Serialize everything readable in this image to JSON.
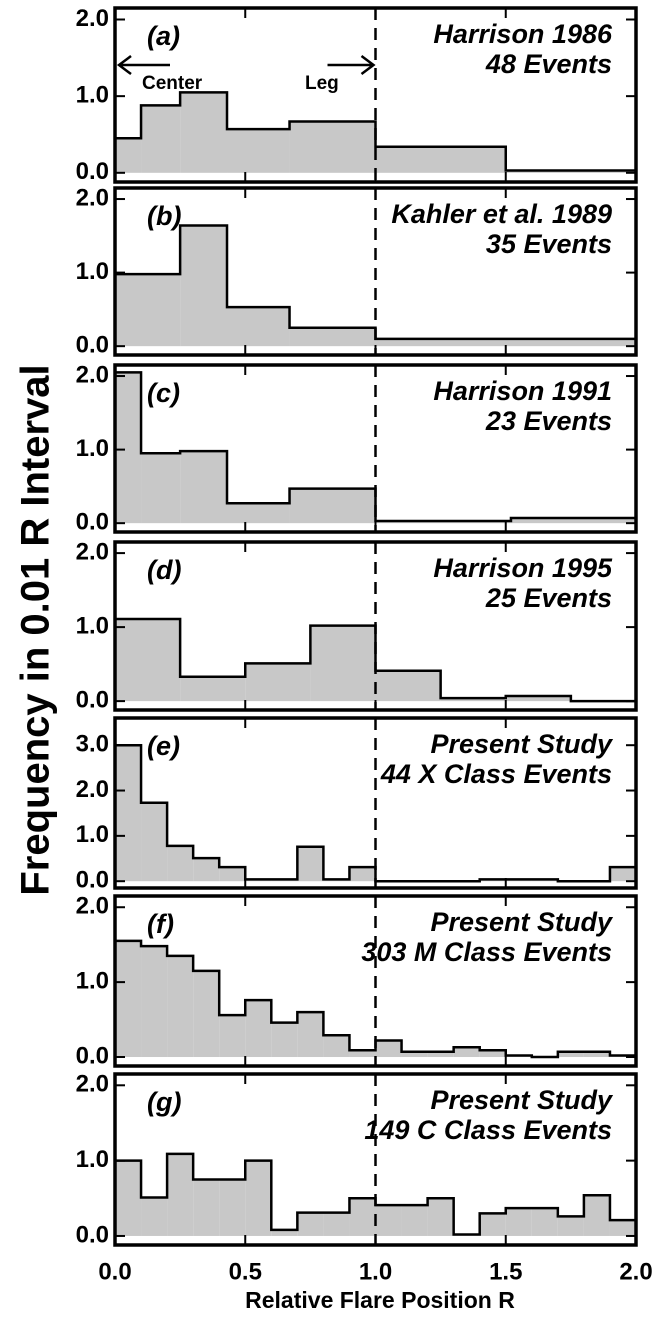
{
  "ylabel": "Frequency in 0.01 R Interval",
  "xlabel": "Relative Flare Position R",
  "chart_data": [
    {
      "type": "histogram",
      "label": "(a)",
      "title": "Harrison 1986",
      "subtitle": "48 Events",
      "annotations": [
        "Center",
        "Leg"
      ],
      "bins": [
        0,
        0.1,
        0.25,
        0.43,
        0.67,
        1.0,
        1.5,
        2.0
      ],
      "counts": [
        0.45,
        0.88,
        1.05,
        0.57,
        0.67,
        0.34,
        0.03
      ],
      "color": "#c8c8c8",
      "xlim": [
        0,
        2
      ],
      "xticks": [
        0,
        0.5,
        1,
        1.5,
        2
      ],
      "ylim": [
        -0.12,
        2.15
      ],
      "yticks": [
        {
          "value": 0,
          "label": "0.0"
        },
        {
          "value": 1,
          "label": "1.0"
        },
        {
          "value": 2,
          "label": "2.0"
        }
      ],
      "vline": 1
    },
    {
      "type": "histogram",
      "label": "(b)",
      "title": "Kahler et al. 1989",
      "subtitle": "35 Events",
      "bins": [
        0,
        0.25,
        0.43,
        0.67,
        1.0,
        2.0
      ],
      "counts": [
        0.98,
        1.64,
        0.53,
        0.25,
        0.1
      ],
      "color": "#c8c8c8",
      "xlim": [
        0,
        2
      ],
      "xticks": [
        0,
        0.5,
        1,
        1.5,
        2
      ],
      "ylim": [
        -0.12,
        2.15
      ],
      "yticks": [
        {
          "value": 0,
          "label": "0.0"
        },
        {
          "value": 1,
          "label": "1.0"
        },
        {
          "value": 2,
          "label": "2.0"
        }
      ],
      "vline": 1
    },
    {
      "type": "histogram",
      "label": "(c)",
      "title": "Harrison 1991",
      "subtitle": "23 Events",
      "bins": [
        0,
        0.1,
        0.25,
        0.43,
        0.67,
        1.0,
        1.52,
        2.0
      ],
      "counts": [
        2.05,
        0.95,
        0.98,
        0.27,
        0.47,
        0.03,
        0.07
      ],
      "color": "#c8c8c8",
      "xlim": [
        0,
        2
      ],
      "xticks": [
        0,
        0.5,
        1,
        1.5,
        2
      ],
      "ylim": [
        -0.12,
        2.15
      ],
      "yticks": [
        {
          "value": 0,
          "label": "0.0"
        },
        {
          "value": 1,
          "label": "1.0"
        },
        {
          "value": 2,
          "label": "2.0"
        }
      ],
      "vline": 1
    },
    {
      "type": "histogram",
      "label": "(d)",
      "title": "Harrison 1995",
      "subtitle": "25 Events",
      "bins": [
        0,
        0.25,
        0.5,
        0.75,
        1.0,
        1.25,
        1.5,
        1.75,
        2.0
      ],
      "counts": [
        1.11,
        0.33,
        0.51,
        1.02,
        0.41,
        0.04,
        0.07,
        0
      ],
      "color": "#c8c8c8",
      "xlim": [
        0,
        2
      ],
      "xticks": [
        0,
        0.5,
        1,
        1.5,
        2
      ],
      "ylim": [
        -0.12,
        2.15
      ],
      "yticks": [
        {
          "value": 0,
          "label": "0.0"
        },
        {
          "value": 1,
          "label": "1.0"
        },
        {
          "value": 2,
          "label": "2.0"
        }
      ],
      "vline": 1
    },
    {
      "type": "histogram",
      "label": "(e)",
      "title": "Present Study",
      "subtitle": "44 X Class Events",
      "bins": [
        0,
        0.1,
        0.2,
        0.3,
        0.4,
        0.5,
        0.6,
        0.7,
        0.8,
        0.9,
        1.0,
        1.1,
        1.2,
        1.3,
        1.4,
        1.5,
        1.6,
        1.7,
        1.8,
        1.9,
        2.0
      ],
      "counts": [
        3.0,
        1.73,
        0.78,
        0.51,
        0.31,
        0.04,
        0.04,
        0.76,
        0.04,
        0.31,
        0,
        0,
        0,
        0,
        0.04,
        0.04,
        0.04,
        0,
        0,
        0.31
      ],
      "color": "#c8c8c8",
      "xlim": [
        0,
        2
      ],
      "xticks": [
        0,
        0.5,
        1,
        1.5,
        2
      ],
      "ylim": [
        -0.15,
        3.6
      ],
      "yticks": [
        {
          "value": 0,
          "label": "0.0"
        },
        {
          "value": 1,
          "label": "1.0"
        },
        {
          "value": 2,
          "label": "2.0"
        },
        {
          "value": 3,
          "label": "3.0"
        }
      ],
      "vline": 1
    },
    {
      "type": "histogram",
      "label": "(f)",
      "title": "Present Study",
      "subtitle": "303 M Class Events",
      "bins": [
        0,
        0.1,
        0.2,
        0.3,
        0.4,
        0.5,
        0.6,
        0.7,
        0.8,
        0.9,
        1.0,
        1.1,
        1.2,
        1.3,
        1.4,
        1.5,
        1.6,
        1.7,
        1.8,
        1.9,
        2.0
      ],
      "counts": [
        1.55,
        1.48,
        1.35,
        1.15,
        0.56,
        0.76,
        0.46,
        0.6,
        0.29,
        0.09,
        0.22,
        0.07,
        0.07,
        0.13,
        0.09,
        0.02,
        0,
        0.07,
        0.07,
        0.02
      ],
      "color": "#c8c8c8",
      "xlim": [
        0,
        2
      ],
      "xticks": [
        0,
        0.5,
        1,
        1.5,
        2
      ],
      "ylim": [
        -0.12,
        2.15
      ],
      "yticks": [
        {
          "value": 0,
          "label": "0.0"
        },
        {
          "value": 1,
          "label": "1.0"
        },
        {
          "value": 2,
          "label": "2.0"
        }
      ],
      "vline": 1
    },
    {
      "type": "histogram",
      "label": "(g)",
      "title": "Present Study",
      "subtitle": "149 C Class Events",
      "bins": [
        0,
        0.1,
        0.2,
        0.3,
        0.4,
        0.5,
        0.6,
        0.7,
        0.8,
        0.9,
        1.0,
        1.1,
        1.2,
        1.3,
        1.4,
        1.5,
        1.6,
        1.7,
        1.8,
        1.9,
        2.0
      ],
      "counts": [
        1.0,
        0.51,
        1.09,
        0.75,
        0.75,
        1.0,
        0.08,
        0.31,
        0.31,
        0.5,
        0.41,
        0.41,
        0.5,
        0.02,
        0.3,
        0.37,
        0.37,
        0.26,
        0.54,
        0.21
      ],
      "color": "#c8c8c8",
      "xlim": [
        0,
        2
      ],
      "xticks": [
        {
          "value": 0,
          "label": "0.0"
        },
        {
          "value": 0.5,
          "label": "0.5"
        },
        {
          "value": 1,
          "label": "1.0"
        },
        {
          "value": 1.5,
          "label": "1.5"
        },
        {
          "value": 2,
          "label": "2.0"
        }
      ],
      "ylim": [
        -0.12,
        2.15
      ],
      "yticks": [
        {
          "value": 0,
          "label": "0.0"
        },
        {
          "value": 1,
          "label": "1.0"
        },
        {
          "value": 2,
          "label": "2.0"
        }
      ],
      "vline": 1
    }
  ]
}
